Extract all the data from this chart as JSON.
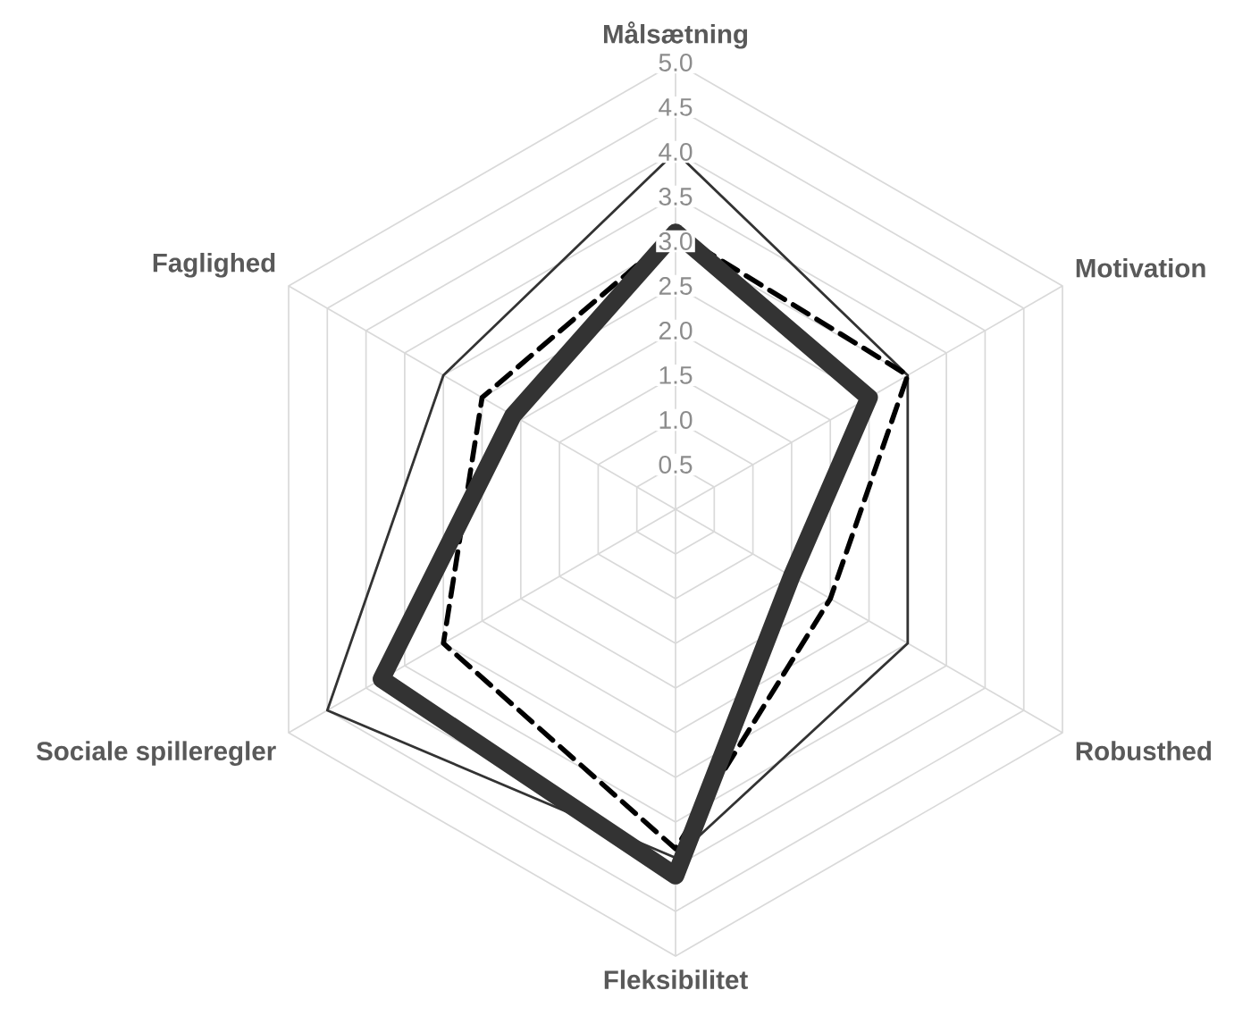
{
  "chart_data": {
    "type": "radar",
    "categories": [
      "Målsætning",
      "Motivation",
      "Robusthed",
      "Fleksibilitet",
      "Sociale spilleregler",
      "Faglighed"
    ],
    "series": [
      {
        "color": "#333333",
        "line_style": "solid",
        "values": [
          4.0,
          3.0,
          3.0,
          3.9,
          4.5,
          3.0
        ]
      },
      {
        "color": "#000000",
        "line_style": "dashed",
        "values": [
          3.1,
          3.0,
          2.0,
          3.8,
          3.0,
          2.5
        ]
      },
      {
        "color": "#333333",
        "line_style": "solid",
        "values": [
          3.1,
          2.5,
          1.5,
          4.1,
          3.8,
          2.1
        ]
      }
    ],
    "ylim": [
      0,
      5
    ],
    "yticks": [
      {
        "value": 0.5,
        "label": "0.5"
      },
      {
        "value": 1,
        "label": "1.0"
      },
      {
        "value": 1.5,
        "label": "1.5"
      },
      {
        "value": 2,
        "label": "2.0"
      },
      {
        "value": 2.5,
        "label": "2.5"
      },
      {
        "value": 3,
        "label": "3.0"
      },
      {
        "value": 3.5,
        "label": "3.5"
      },
      {
        "value": 4,
        "label": "4.0"
      },
      {
        "value": 4.5,
        "label": "4.5"
      },
      {
        "value": 5,
        "label": "5.0"
      }
    ],
    "grid": true
  }
}
